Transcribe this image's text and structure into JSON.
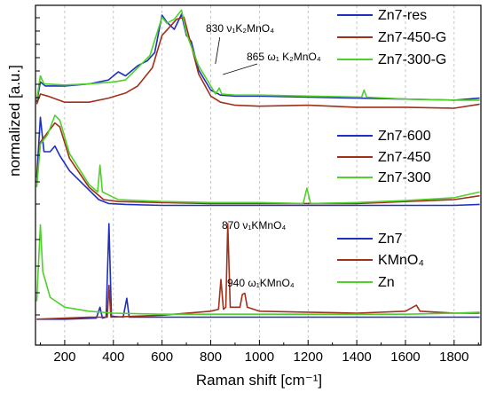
{
  "chart_data": {
    "type": "line",
    "title": "",
    "xlabel": "Raman shift [cm⁻¹]",
    "ylabel": "normalized [a.u.]",
    "xlim": [
      80,
      1910
    ],
    "xticks": [
      200,
      400,
      600,
      800,
      1000,
      1200,
      1400,
      1600,
      1800
    ],
    "grid": "vertical dashed",
    "legend_position": "right",
    "panels": [
      {
        "legend": [
          "Zn7-res",
          "Zn7-450-G",
          "Zn7-300-G"
        ],
        "series": [
          {
            "name": "Zn7-res",
            "color": "#1f2fbf",
            "points": [
              [
                85,
                0.06
              ],
              [
                100,
                0.26
              ],
              [
                120,
                0.22
              ],
              [
                200,
                0.22
              ],
              [
                300,
                0.24
              ],
              [
                380,
                0.28
              ],
              [
                420,
                0.36
              ],
              [
                450,
                0.32
              ],
              [
                500,
                0.42
              ],
              [
                540,
                0.47
              ],
              [
                570,
                0.55
              ],
              [
                600,
                0.92
              ],
              [
                620,
                0.85
              ],
              [
                650,
                0.78
              ],
              [
                680,
                0.93
              ],
              [
                700,
                0.72
              ],
              [
                720,
                0.66
              ],
              [
                750,
                0.38
              ],
              [
                800,
                0.18
              ],
              [
                840,
                0.13
              ],
              [
                900,
                0.12
              ],
              [
                1000,
                0.12
              ],
              [
                1200,
                0.11
              ],
              [
                1400,
                0.1
              ],
              [
                1600,
                0.09
              ],
              [
                1800,
                0.08
              ],
              [
                1905,
                0.1
              ]
            ]
          },
          {
            "name": "Zn7-450-G",
            "color": "#a0301a",
            "points": [
              [
                85,
                0.04
              ],
              [
                100,
                0.14
              ],
              [
                130,
                0.12
              ],
              [
                200,
                0.06
              ],
              [
                300,
                0.06
              ],
              [
                380,
                0.1
              ],
              [
                450,
                0.15
              ],
              [
                500,
                0.22
              ],
              [
                560,
                0.4
              ],
              [
                600,
                0.72
              ],
              [
                630,
                0.8
              ],
              [
                660,
                0.88
              ],
              [
                690,
                0.9
              ],
              [
                720,
                0.62
              ],
              [
                750,
                0.34
              ],
              [
                800,
                0.12
              ],
              [
                840,
                0.06
              ],
              [
                900,
                0.03
              ],
              [
                1000,
                0.02
              ],
              [
                1200,
                0.03
              ],
              [
                1400,
                0.01
              ],
              [
                1600,
                0.01
              ],
              [
                1800,
                0.0
              ],
              [
                1905,
                0.04
              ]
            ]
          },
          {
            "name": "Zn7-300-G",
            "color": "#4fd12a",
            "points": [
              [
                85,
                0.08
              ],
              [
                100,
                0.32
              ],
              [
                115,
                0.24
              ],
              [
                200,
                0.23
              ],
              [
                300,
                0.24
              ],
              [
                400,
                0.26
              ],
              [
                450,
                0.28
              ],
              [
                500,
                0.4
              ],
              [
                550,
                0.52
              ],
              [
                600,
                0.9
              ],
              [
                620,
                0.84
              ],
              [
                650,
                0.88
              ],
              [
                680,
                0.97
              ],
              [
                700,
                0.74
              ],
              [
                750,
                0.42
              ],
              [
                820,
                0.14
              ],
              [
                835,
                0.2
              ],
              [
                845,
                0.14
              ],
              [
                900,
                0.13
              ],
              [
                1000,
                0.13
              ],
              [
                1200,
                0.12
              ],
              [
                1420,
                0.11
              ],
              [
                1430,
                0.18
              ],
              [
                1440,
                0.11
              ],
              [
                1600,
                0.09
              ],
              [
                1800,
                0.08
              ],
              [
                1905,
                0.08
              ]
            ]
          }
        ]
      },
      {
        "legend": [
          "Zn7-600",
          "Zn7-450",
          "Zn7-300"
        ],
        "series": [
          {
            "name": "Zn7-600",
            "color": "#1f2fbf",
            "points": [
              [
                85,
                0.35
              ],
              [
                100,
                0.98
              ],
              [
                115,
                0.62
              ],
              [
                140,
                0.62
              ],
              [
                160,
                0.68
              ],
              [
                180,
                0.58
              ],
              [
                220,
                0.42
              ],
              [
                300,
                0.22
              ],
              [
                340,
                0.12
              ],
              [
                380,
                0.08
              ],
              [
                450,
                0.07
              ],
              [
                600,
                0.06
              ],
              [
                800,
                0.06
              ],
              [
                1000,
                0.06
              ],
              [
                1200,
                0.06
              ],
              [
                1400,
                0.06
              ],
              [
                1600,
                0.06
              ],
              [
                1800,
                0.06
              ],
              [
                1905,
                0.07
              ]
            ]
          },
          {
            "name": "Zn7-450",
            "color": "#a0301a",
            "points": [
              [
                85,
                0.3
              ],
              [
                100,
                0.72
              ],
              [
                130,
                0.82
              ],
              [
                160,
                0.92
              ],
              [
                180,
                0.88
              ],
              [
                220,
                0.55
              ],
              [
                300,
                0.25
              ],
              [
                360,
                0.12
              ],
              [
                420,
                0.1
              ],
              [
                600,
                0.09
              ],
              [
                800,
                0.08
              ],
              [
                1000,
                0.08
              ],
              [
                1200,
                0.08
              ],
              [
                1400,
                0.08
              ],
              [
                1600,
                0.1
              ],
              [
                1800,
                0.12
              ],
              [
                1905,
                0.16
              ]
            ]
          },
          {
            "name": "Zn7-300",
            "color": "#4fd12a",
            "points": [
              [
                85,
                0.25
              ],
              [
                100,
                0.7
              ],
              [
                130,
                0.8
              ],
              [
                160,
                1.0
              ],
              [
                180,
                0.95
              ],
              [
                220,
                0.6
              ],
              [
                300,
                0.28
              ],
              [
                335,
                0.2
              ],
              [
                345,
                0.48
              ],
              [
                355,
                0.2
              ],
              [
                420,
                0.12
              ],
              [
                600,
                0.1
              ],
              [
                800,
                0.09
              ],
              [
                1000,
                0.09
              ],
              [
                1180,
                0.08
              ],
              [
                1195,
                0.24
              ],
              [
                1210,
                0.08
              ],
              [
                1400,
                0.09
              ],
              [
                1600,
                0.11
              ],
              [
                1800,
                0.14
              ],
              [
                1905,
                0.2
              ]
            ]
          }
        ]
      },
      {
        "legend": [
          "Zn7",
          "KMnO₄",
          "Zn"
        ],
        "series": [
          {
            "name": "Zn7",
            "color": "#1f2fbf",
            "points": [
              [
                85,
                0.02
              ],
              [
                200,
                0.02
              ],
              [
                330,
                0.03
              ],
              [
                345,
                0.14
              ],
              [
                355,
                0.03
              ],
              [
                370,
                0.04
              ],
              [
                382,
                0.98
              ],
              [
                392,
                0.05
              ],
              [
                440,
                0.04
              ],
              [
                455,
                0.23
              ],
              [
                465,
                0.04
              ],
              [
                600,
                0.04
              ],
              [
                800,
                0.04
              ],
              [
                1000,
                0.04
              ],
              [
                1200,
                0.04
              ],
              [
                1400,
                0.04
              ],
              [
                1600,
                0.04
              ],
              [
                1800,
                0.04
              ],
              [
                1905,
                0.04
              ]
            ]
          },
          {
            "name": "KMnO₄",
            "color": "#a0301a",
            "points": [
              [
                85,
                0.02
              ],
              [
                300,
                0.04
              ],
              [
                375,
                0.04
              ],
              [
                382,
                0.36
              ],
              [
                390,
                0.04
              ],
              [
                600,
                0.06
              ],
              [
                800,
                0.1
              ],
              [
                832,
                0.12
              ],
              [
                842,
                0.42
              ],
              [
                852,
                0.12
              ],
              [
                862,
                0.14
              ],
              [
                870,
                0.98
              ],
              [
                880,
                0.14
              ],
              [
                920,
                0.14
              ],
              [
                930,
                0.27
              ],
              [
                940,
                0.28
              ],
              [
                950,
                0.14
              ],
              [
                1000,
                0.1
              ],
              [
                1200,
                0.09
              ],
              [
                1400,
                0.08
              ],
              [
                1600,
                0.1
              ],
              [
                1645,
                0.16
              ],
              [
                1660,
                0.1
              ],
              [
                1800,
                0.08
              ],
              [
                1905,
                0.08
              ]
            ]
          },
          {
            "name": "Zn",
            "color": "#4fd12a",
            "points": [
              [
                85,
                0.2
              ],
              [
                100,
                0.97
              ],
              [
                110,
                0.5
              ],
              [
                140,
                0.24
              ],
              [
                200,
                0.14
              ],
              [
                300,
                0.1
              ],
              [
                400,
                0.08
              ],
              [
                600,
                0.07
              ],
              [
                800,
                0.07
              ],
              [
                1000,
                0.07
              ],
              [
                1200,
                0.07
              ],
              [
                1400,
                0.07
              ],
              [
                1600,
                0.07
              ],
              [
                1800,
                0.08
              ],
              [
                1905,
                0.09
              ]
            ]
          }
        ]
      }
    ],
    "annotations": [
      {
        "text": "830 ν₁K₂MnO₄"
      },
      {
        "text": "865 ω₁ K₂MnO₄"
      },
      {
        "text": "870 ν₁KMnO₄"
      },
      {
        "text": "940 ω₁KMnO₄"
      }
    ]
  }
}
